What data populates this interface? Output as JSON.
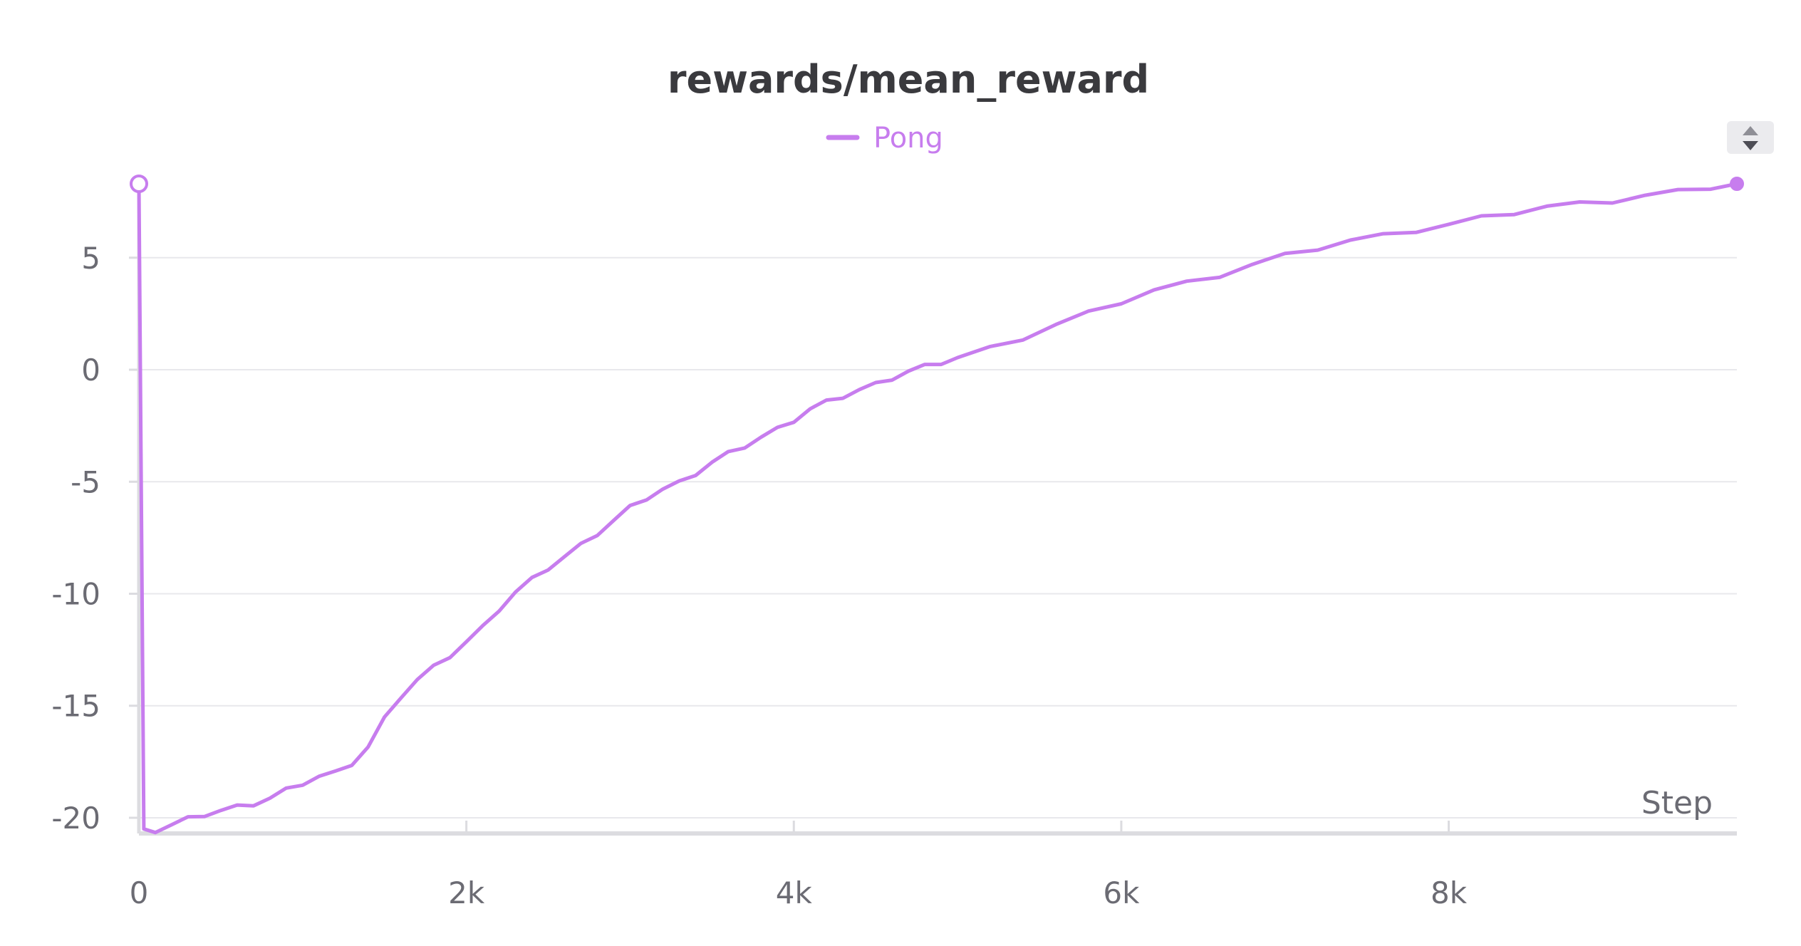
{
  "chart_data": {
    "type": "line",
    "title": "rewards/mean_reward",
    "xlabel": "Step",
    "ylabel": "",
    "xlim": [
      0,
      9760
    ],
    "ylim": [
      -20.7,
      8.3
    ],
    "x_ticks": [
      {
        "value": 0,
        "label": "0"
      },
      {
        "value": 2000,
        "label": "2k"
      },
      {
        "value": 4000,
        "label": "4k"
      },
      {
        "value": 6000,
        "label": "6k"
      },
      {
        "value": 8000,
        "label": "8k"
      }
    ],
    "y_ticks": [
      {
        "value": 5,
        "label": "5"
      },
      {
        "value": 0,
        "label": "0"
      },
      {
        "value": -5,
        "label": "-5"
      },
      {
        "value": -10,
        "label": "-10"
      },
      {
        "value": -15,
        "label": "-15"
      },
      {
        "value": -20,
        "label": "-20"
      }
    ],
    "grid": true,
    "legend_position": "top-center",
    "series": [
      {
        "name": "Pong",
        "color": "#c77dee",
        "x": [
          0,
          30,
          100,
          200,
          300,
          400,
          500,
          600,
          700,
          800,
          900,
          1000,
          1100,
          1200,
          1300,
          1400,
          1500,
          1600,
          1700,
          1800,
          1900,
          2000,
          2100,
          2200,
          2300,
          2400,
          2500,
          2600,
          2700,
          2800,
          2900,
          3000,
          3100,
          3200,
          3300,
          3400,
          3500,
          3600,
          3700,
          3800,
          3900,
          4000,
          4100,
          4200,
          4300,
          4400,
          4500,
          4600,
          4700,
          4800,
          4900,
          5000,
          5200,
          5400,
          5600,
          5800,
          6000,
          6200,
          6400,
          6600,
          6800,
          7000,
          7200,
          7400,
          7600,
          7800,
          8000,
          8200,
          8400,
          8600,
          8800,
          9000,
          9200,
          9400,
          9600,
          9760
        ],
        "y": [
          8.3,
          -20.5,
          -20.5,
          -20.3,
          -20.1,
          -19.9,
          -19.7,
          -19.5,
          -19.3,
          -19.1,
          -18.8,
          -18.5,
          -18.2,
          -18.0,
          -17.5,
          -16.8,
          -15.6,
          -14.6,
          -13.9,
          -13.3,
          -12.7,
          -12.1,
          -11.5,
          -10.7,
          -10.0,
          -9.4,
          -8.8,
          -8.3,
          -7.8,
          -7.3,
          -6.8,
          -6.2,
          -5.7,
          -5.3,
          -5.0,
          -4.6,
          -4.2,
          -3.8,
          -3.4,
          -3.0,
          -2.6,
          -2.2,
          -1.8,
          -1.5,
          -1.2,
          -0.9,
          -0.6,
          -0.3,
          -0.1,
          0.1,
          0.3,
          0.5,
          1.0,
          1.5,
          2.0,
          2.5,
          3.0,
          3.5,
          3.9,
          4.3,
          4.7,
          5.1,
          5.4,
          5.7,
          6.0,
          6.3,
          6.5,
          6.8,
          7.0,
          7.2,
          7.4,
          7.6,
          7.8,
          8.0,
          8.15,
          8.3
        ]
      }
    ]
  }
}
